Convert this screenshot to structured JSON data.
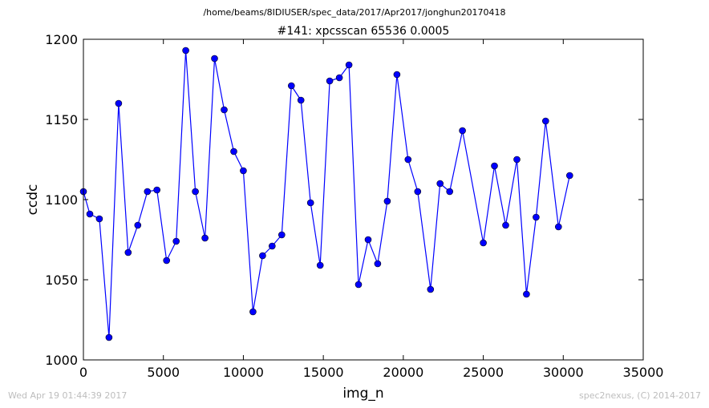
{
  "chart_data": {
    "type": "line",
    "suptitle": "/home/beams/8IDIUSER/spec_data/2017/Apr2017/jonghun20170418",
    "title": "#141: xpcsscan 65536 0.0005",
    "xlabel": "img_n",
    "ylabel": "ccdc",
    "xlim": [
      0,
      35000
    ],
    "ylim": [
      1000,
      1200
    ],
    "xticks": [
      "0",
      "5000",
      "10000",
      "15000",
      "20000",
      "25000",
      "30000",
      "35000"
    ],
    "yticks": [
      "1000",
      "1050",
      "1100",
      "1150",
      "1200"
    ],
    "grid": false,
    "marker": "circle",
    "color": "#0000ff",
    "series": [
      {
        "x": [
          0,
          400,
          1000,
          1600,
          2200,
          2800,
          3400,
          4000,
          4600,
          5200,
          5800,
          6400,
          7000,
          7600,
          8200,
          8800,
          9400,
          10000,
          10600,
          11200,
          11800,
          12400,
          13000,
          13600,
          14200,
          14800,
          15400,
          16000,
          16600,
          17200,
          17800,
          18400,
          19000,
          19600,
          20300,
          20900,
          21700,
          22300,
          22900,
          23700,
          25000,
          25700,
          26400,
          27100,
          27700,
          28300,
          28900,
          29700,
          30400
        ],
        "values": [
          1105,
          1091,
          1088,
          1014,
          1160,
          1067,
          1084,
          1105,
          1106,
          1062,
          1074,
          1193,
          1105,
          1076,
          1188,
          1156,
          1130,
          1118,
          1030,
          1065,
          1071,
          1078,
          1171,
          1162,
          1098,
          1059,
          1174,
          1176,
          1184,
          1047,
          1075,
          1060,
          1099,
          1178,
          1125,
          1105,
          1044,
          1110,
          1105,
          1143,
          1073,
          1121,
          1084,
          1125,
          1041,
          1089,
          1149,
          1083,
          1115
        ]
      }
    ]
  },
  "footer": {
    "timestamp": "Wed Apr 19 01:44:39 2017",
    "credit": "spec2nexus, (C) 2014-2017"
  }
}
